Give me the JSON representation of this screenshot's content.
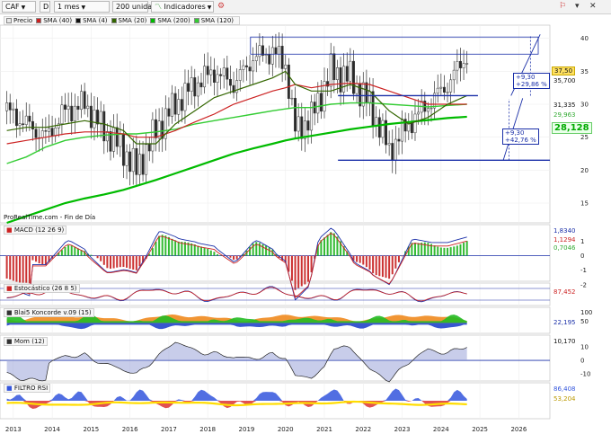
{
  "toolbar": {
    "ticker": "CAF",
    "d_label": "D",
    "period": "1 mes",
    "units": "200 unidades",
    "indicators": "Indicadores"
  },
  "main_legend": [
    {
      "label": "Precio",
      "color": "#e8e8e8"
    },
    {
      "label": "SMA (40)",
      "color": "#cc2222"
    },
    {
      "label": "SMA (4)",
      "color": "#111111"
    },
    {
      "label": "SMA (20)",
      "color": "#336600"
    },
    {
      "label": "SMA (200)",
      "color": "#00bb00"
    },
    {
      "label": "SMA (120)",
      "color": "#33cc33"
    }
  ],
  "source_text": "ProRealTime.com - Fin de Día",
  "price_axis": [
    "40",
    "35",
    "30",
    "25",
    "20",
    "15"
  ],
  "price_tags": {
    "last": "37,50",
    "level1": "35,700",
    "level2": "31,335",
    "level3": "29,963",
    "level4": "28,128"
  },
  "measurements": {
    "upper": [
      "+9,30",
      "+29,86 %"
    ],
    "lower": [
      "+9,30",
      "+42,76 %"
    ]
  },
  "x_axis": [
    "2013",
    "2014",
    "2015",
    "2016",
    "2017",
    "2018",
    "2019",
    "2020",
    "2021",
    "2022",
    "2023",
    "2024",
    "2025",
    "2026"
  ],
  "panels": {
    "macd": {
      "label": "MACD (12 26 9)",
      "axis": [
        "1",
        "0",
        "-1",
        "-2"
      ],
      "tags": [
        "1,8340",
        "1,1294",
        "0,7046"
      ]
    },
    "stoch": {
      "label": "Estocástico (26 8 5)",
      "tags": [
        "87,452"
      ]
    },
    "koncorde": {
      "label": "Blai5 Koncorde v.09 (15)",
      "axis": [
        "100",
        "50"
      ],
      "tags": [
        "22,195"
      ]
    },
    "mom": {
      "label": "Mom (12)",
      "axis": [
        "10",
        "0",
        "-10"
      ],
      "tags": [
        "10,170"
      ]
    },
    "rsi": {
      "label": "FILTRO RSI",
      "tags": [
        "86,408",
        "53,204"
      ]
    }
  },
  "chart_data": {
    "type": "line",
    "title": "",
    "x": [
      "2012-11",
      "2013-05",
      "2013-11",
      "2014-05",
      "2014-11",
      "2015-05",
      "2015-11",
      "2016-03",
      "2016-09",
      "2017-03",
      "2017-09",
      "2018-03",
      "2018-09",
      "2019-03",
      "2019-09",
      "2020-01",
      "2020-04",
      "2020-09",
      "2021-03",
      "2021-09",
      "2022-03",
      "2022-09",
      "2023-03",
      "2023-09",
      "2024-03",
      "2024-09"
    ],
    "series": [
      {
        "name": "Precio",
        "values": [
          29,
          27,
          25,
          29,
          30,
          26,
          23,
          20,
          26,
          30,
          33,
          35,
          33,
          37,
          38,
          36,
          26,
          28,
          35,
          34,
          30,
          23,
          27,
          30,
          33,
          37.5
        ]
      },
      {
        "name": "SMA (20)",
        "values": [
          26,
          26.5,
          26.5,
          27,
          27.5,
          27,
          26,
          24,
          24,
          27,
          29,
          31,
          32,
          33,
          34,
          35,
          33,
          32,
          32,
          33,
          32,
          29,
          27,
          28,
          30,
          31.3
        ]
      },
      {
        "name": "SMA (40)",
        "values": [
          24,
          24.5,
          25,
          25.5,
          25.8,
          25.8,
          25.5,
          25,
          25,
          26,
          27.3,
          28.5,
          30,
          31,
          32,
          32.5,
          33,
          32.5,
          33,
          33.2,
          33,
          32,
          31,
          30,
          30,
          30
        ]
      },
      {
        "name": "SMA (120)",
        "values": [
          21,
          22,
          23.5,
          24.5,
          25,
          25.3,
          25.5,
          25.5,
          25.8,
          26.2,
          27,
          27.5,
          28,
          28.5,
          29,
          29.3,
          29.5,
          29.5,
          30,
          30.2,
          30.2,
          30,
          29.8,
          29.6,
          29.8,
          30
        ]
      },
      {
        "name": "SMA (200)",
        "values": [
          12,
          13,
          14,
          15,
          15.7,
          16.3,
          17,
          17.6,
          18.5,
          19.5,
          20.5,
          21.5,
          22.5,
          23.3,
          24,
          24.5,
          24.8,
          25.2,
          25.7,
          26.2,
          26.6,
          27,
          27.3,
          27.6,
          27.9,
          28.1
        ]
      }
    ],
    "ylim": [
      12,
      42
    ],
    "support_levels": [
      31.3,
      21.5
    ],
    "grid": true,
    "legend": "top-left"
  },
  "colors": {
    "up_candle": "#2a4a1a",
    "sma40": "#cc2222",
    "sma20": "#336600",
    "sma120": "#33cc33",
    "sma200": "#00bb00",
    "hline": "#1a2fa8",
    "macd_hist": "#33bb33",
    "macd_hist_neg": "#cc3333",
    "koncorde_orange": "#f08a1e",
    "koncorde_green": "#22bb22",
    "koncorde_blue": "#2244cc",
    "rsi_blue": "#3355dd",
    "rsi_red": "#dd3333",
    "rsi_yellow": "#ffdd00"
  }
}
